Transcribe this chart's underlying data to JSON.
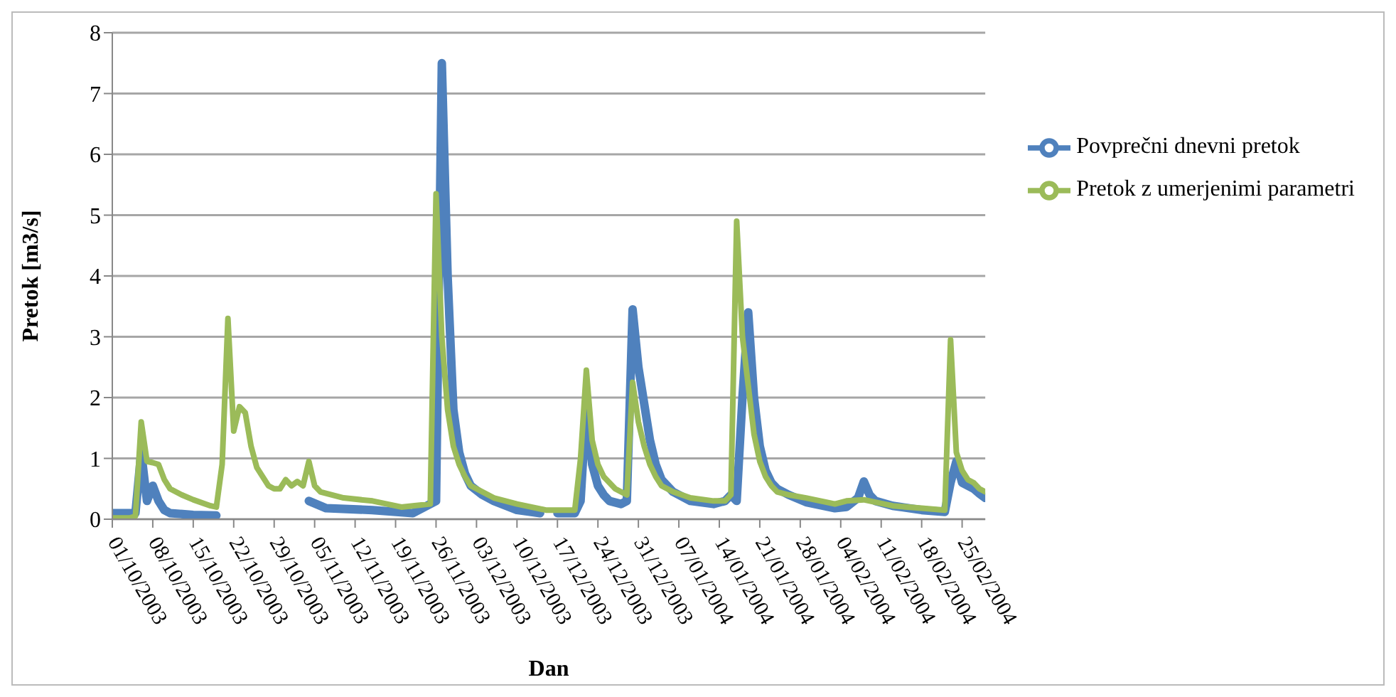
{
  "chart_data": {
    "type": "line",
    "xlabel": "Dan",
    "ylabel": "Pretok [m3/s]",
    "grid": "y",
    "legend": "top right",
    "line_style": "solid",
    "xlim": [
      "2003-10-01",
      "2004-02-29"
    ],
    "xticks": [
      {
        "value": "2003-10-01",
        "label": "01/10/2003"
      },
      {
        "value": "2003-10-08",
        "label": "08/10/2003"
      },
      {
        "value": "2003-10-15",
        "label": "15/10/2003"
      },
      {
        "value": "2003-10-22",
        "label": "22/10/2003"
      },
      {
        "value": "2003-10-29",
        "label": "29/10/2003"
      },
      {
        "value": "2003-11-05",
        "label": "05/11/2003"
      },
      {
        "value": "2003-11-12",
        "label": "12/11/2003"
      },
      {
        "value": "2003-11-19",
        "label": "19/11/2003"
      },
      {
        "value": "2003-11-26",
        "label": "26/11/2003"
      },
      {
        "value": "2003-12-03",
        "label": "03/12/2003"
      },
      {
        "value": "2003-12-10",
        "label": "10/12/2003"
      },
      {
        "value": "2003-12-17",
        "label": "17/12/2003"
      },
      {
        "value": "2003-12-24",
        "label": "24/12/2003"
      },
      {
        "value": "2003-12-31",
        "label": "31/12/2003"
      },
      {
        "value": "2004-01-07",
        "label": "07/01/2004"
      },
      {
        "value": "2004-01-14",
        "label": "14/01/2004"
      },
      {
        "value": "2004-01-21",
        "label": "21/01/2004"
      },
      {
        "value": "2004-01-28",
        "label": "28/01/2004"
      },
      {
        "value": "2004-02-04",
        "label": "04/02/2004"
      },
      {
        "value": "2004-02-11",
        "label": "11/02/2004"
      },
      {
        "value": "2004-02-18",
        "label": "18/02/2004"
      },
      {
        "value": "2004-02-25",
        "label": "25/02/2004"
      }
    ],
    "ylim": [
      0,
      8
    ],
    "yticks": [
      0,
      1,
      2,
      3,
      4,
      5,
      6,
      7,
      8
    ],
    "series": [
      {
        "name": "Povprečni dnevni pretok",
        "color": "#4f81bd",
        "x": [
          "2003-10-01",
          "2003-10-05",
          "2003-10-06",
          "2003-10-07",
          "2003-10-08",
          "2003-10-09",
          "2003-10-10",
          "2003-10-11",
          "2003-10-15",
          "2003-10-19",
          "2003-10-20",
          "2003-11-03",
          "2003-11-04",
          "2003-11-07",
          "2003-11-15",
          "2003-11-22",
          "2003-11-26",
          "2003-11-27",
          "2003-11-28",
          "2003-11-29",
          "2003-11-30",
          "2003-12-01",
          "2003-12-02",
          "2003-12-04",
          "2003-12-06",
          "2003-12-10",
          "2003-12-14",
          "2003-12-15",
          "2003-12-16",
          "2003-12-17",
          "2003-12-20",
          "2003-12-21",
          "2003-12-22",
          "2003-12-23",
          "2003-12-24",
          "2003-12-25",
          "2003-12-26",
          "2003-12-28",
          "2003-12-29",
          "2003-12-30",
          "2003-12-31",
          "2004-01-01",
          "2004-01-02",
          "2004-01-03",
          "2004-01-04",
          "2004-01-06",
          "2004-01-09",
          "2004-01-13",
          "2004-01-15",
          "2004-01-16",
          "2004-01-17",
          "2004-01-18",
          "2004-01-19",
          "2004-01-20",
          "2004-01-21",
          "2004-01-22",
          "2004-01-23",
          "2004-01-24",
          "2004-01-26",
          "2004-01-29",
          "2004-02-03",
          "2004-02-05",
          "2004-02-07",
          "2004-02-08",
          "2004-02-09",
          "2004-02-10",
          "2004-02-13",
          "2004-02-18",
          "2004-02-22",
          "2004-02-23",
          "2004-02-24",
          "2004-02-25",
          "2004-02-26",
          "2004-02-27",
          "2004-02-28",
          "2004-02-29"
        ],
        "values": [
          0.1,
          0.1,
          1.1,
          0.3,
          0.55,
          0.3,
          0.15,
          0.1,
          0.07,
          0.06,
          null,
          null,
          0.3,
          0.18,
          0.15,
          0.1,
          0.3,
          7.5,
          4.0,
          1.8,
          1.1,
          0.75,
          0.55,
          0.4,
          0.3,
          0.15,
          0.1,
          null,
          null,
          0.1,
          0.1,
          0.3,
          1.9,
          0.9,
          0.55,
          0.4,
          0.3,
          0.25,
          0.3,
          3.45,
          2.5,
          1.9,
          1.3,
          0.9,
          0.65,
          0.45,
          0.3,
          0.25,
          0.3,
          0.4,
          0.3,
          2.0,
          3.4,
          2.0,
          1.2,
          0.8,
          0.6,
          0.5,
          0.4,
          0.28,
          0.18,
          0.2,
          0.35,
          0.62,
          0.4,
          0.3,
          0.22,
          0.15,
          0.12,
          0.6,
          0.95,
          0.6,
          0.55,
          0.5,
          0.42,
          0.35
        ]
      },
      {
        "name": "Pretok z umerjenimi parametri",
        "color": "#9bbb59",
        "x": [
          "2003-10-01",
          "2003-10-04",
          "2003-10-05",
          "2003-10-06",
          "2003-10-07",
          "2003-10-08",
          "2003-10-09",
          "2003-10-10",
          "2003-10-11",
          "2003-10-13",
          "2003-10-15",
          "2003-10-18",
          "2003-10-19",
          "2003-10-20",
          "2003-10-21",
          "2003-10-22",
          "2003-10-23",
          "2003-10-24",
          "2003-10-25",
          "2003-10-26",
          "2003-10-27",
          "2003-10-28",
          "2003-10-29",
          "2003-10-30",
          "2003-10-31",
          "2003-11-01",
          "2003-11-02",
          "2003-11-03",
          "2003-11-04",
          "2003-11-05",
          "2003-11-06",
          "2003-11-08",
          "2003-11-10",
          "2003-11-15",
          "2003-11-20",
          "2003-11-22",
          "2003-11-25",
          "2003-11-26",
          "2003-11-27",
          "2003-11-28",
          "2003-11-29",
          "2003-11-30",
          "2003-12-01",
          "2003-12-02",
          "2003-12-04",
          "2003-12-06",
          "2003-12-10",
          "2003-12-15",
          "2003-12-20",
          "2003-12-21",
          "2003-12-22",
          "2003-12-23",
          "2003-12-24",
          "2003-12-25",
          "2003-12-26",
          "2003-12-27",
          "2003-12-28",
          "2003-12-29",
          "2003-12-30",
          "2003-12-31",
          "2004-01-01",
          "2004-01-02",
          "2004-01-03",
          "2004-01-04",
          "2004-01-06",
          "2004-01-09",
          "2004-01-13",
          "2004-01-15",
          "2004-01-16",
          "2004-01-17",
          "2004-01-18",
          "2004-01-19",
          "2004-01-20",
          "2004-01-21",
          "2004-01-22",
          "2004-01-23",
          "2004-01-24",
          "2004-01-26",
          "2004-01-29",
          "2004-02-03",
          "2004-02-05",
          "2004-02-08",
          "2004-02-10",
          "2004-02-13",
          "2004-02-18",
          "2004-02-22",
          "2004-02-23",
          "2004-02-24",
          "2004-02-25",
          "2004-02-26",
          "2004-02-27",
          "2004-02-28",
          "2004-02-29"
        ],
        "values": [
          0.02,
          0.02,
          0.05,
          1.6,
          0.95,
          0.93,
          0.9,
          0.65,
          0.5,
          0.4,
          0.32,
          0.22,
          0.2,
          0.9,
          3.3,
          1.45,
          1.85,
          1.75,
          1.2,
          0.85,
          0.7,
          0.55,
          0.5,
          0.5,
          0.65,
          0.55,
          0.62,
          0.55,
          0.95,
          0.55,
          0.45,
          0.4,
          0.35,
          0.3,
          0.2,
          0.22,
          0.25,
          5.35,
          3.0,
          1.8,
          1.2,
          0.9,
          0.7,
          0.55,
          0.45,
          0.35,
          0.25,
          0.15,
          0.15,
          1.0,
          2.45,
          1.3,
          0.9,
          0.7,
          0.6,
          0.5,
          0.45,
          0.4,
          2.25,
          1.6,
          1.2,
          0.9,
          0.7,
          0.55,
          0.45,
          0.35,
          0.3,
          0.3,
          0.4,
          4.9,
          3.0,
          2.2,
          1.4,
          0.95,
          0.7,
          0.55,
          0.45,
          0.4,
          0.35,
          0.25,
          0.3,
          0.32,
          0.28,
          0.22,
          0.18,
          0.15,
          2.95,
          1.1,
          0.8,
          0.65,
          0.6,
          0.5,
          0.45
        ]
      }
    ]
  }
}
